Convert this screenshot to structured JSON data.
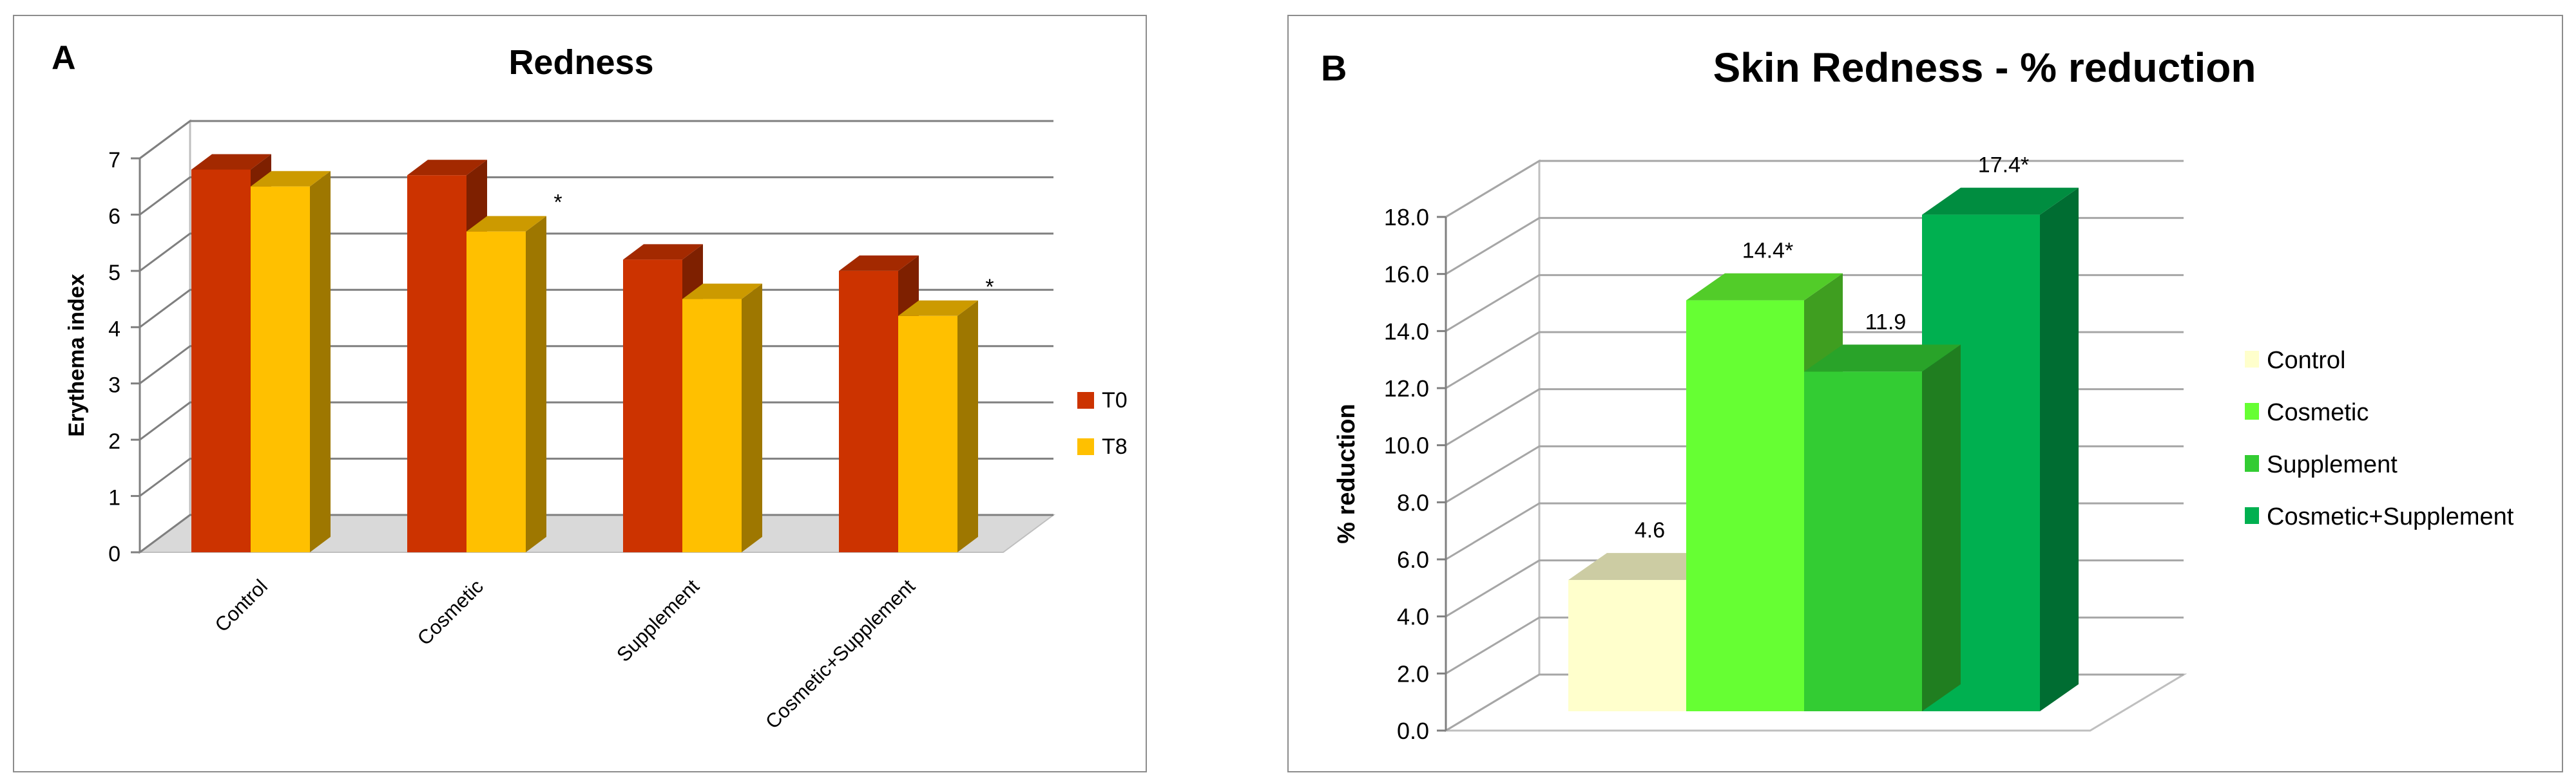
{
  "chart_data": [
    {
      "panel_letter": "A",
      "type": "bar",
      "title": "Redness",
      "xlabel": "",
      "ylabel": "Erythema index",
      "ylim": [
        0,
        7
      ],
      "yticks": [
        "0",
        "1",
        "2",
        "3",
        "4",
        "5",
        "6",
        "7"
      ],
      "categories": [
        "Control",
        "Cosmetic",
        "Supplement",
        "Cosmetic+Supplement"
      ],
      "series": [
        {
          "name": "T0",
          "values": [
            6.8,
            6.7,
            5.2,
            5.0
          ],
          "color": "#CC3300",
          "markers": [
            "",
            "",
            "",
            ""
          ]
        },
        {
          "name": "T8",
          "values": [
            6.5,
            5.7,
            4.5,
            4.2
          ],
          "color": "#FFC000",
          "markers": [
            "",
            "*",
            "",
            "*"
          ]
        }
      ],
      "legend": "right",
      "grid": true
    },
    {
      "panel_letter": "B",
      "type": "bar",
      "title": "Skin Redness - % reduction",
      "xlabel": "",
      "ylabel": "% reduction",
      "ylim": [
        0,
        18
      ],
      "yticks": [
        "0.0",
        "2.0",
        "4.0",
        "6.0",
        "8.0",
        "10.0",
        "12.0",
        "14.0",
        "16.0",
        "18.0"
      ],
      "categories": [
        "Control",
        "Cosmetic",
        "Supplement",
        "Cosmetic+Supplement"
      ],
      "values": [
        4.6,
        14.4,
        11.9,
        17.4
      ],
      "data_labels": [
        "4.6",
        "14.4*",
        "11.9",
        "17.4*"
      ],
      "colors": [
        "#FFFFCC",
        "#66FF33",
        "#33CC33",
        "#00B050"
      ],
      "legend": "right",
      "grid": true
    }
  ]
}
